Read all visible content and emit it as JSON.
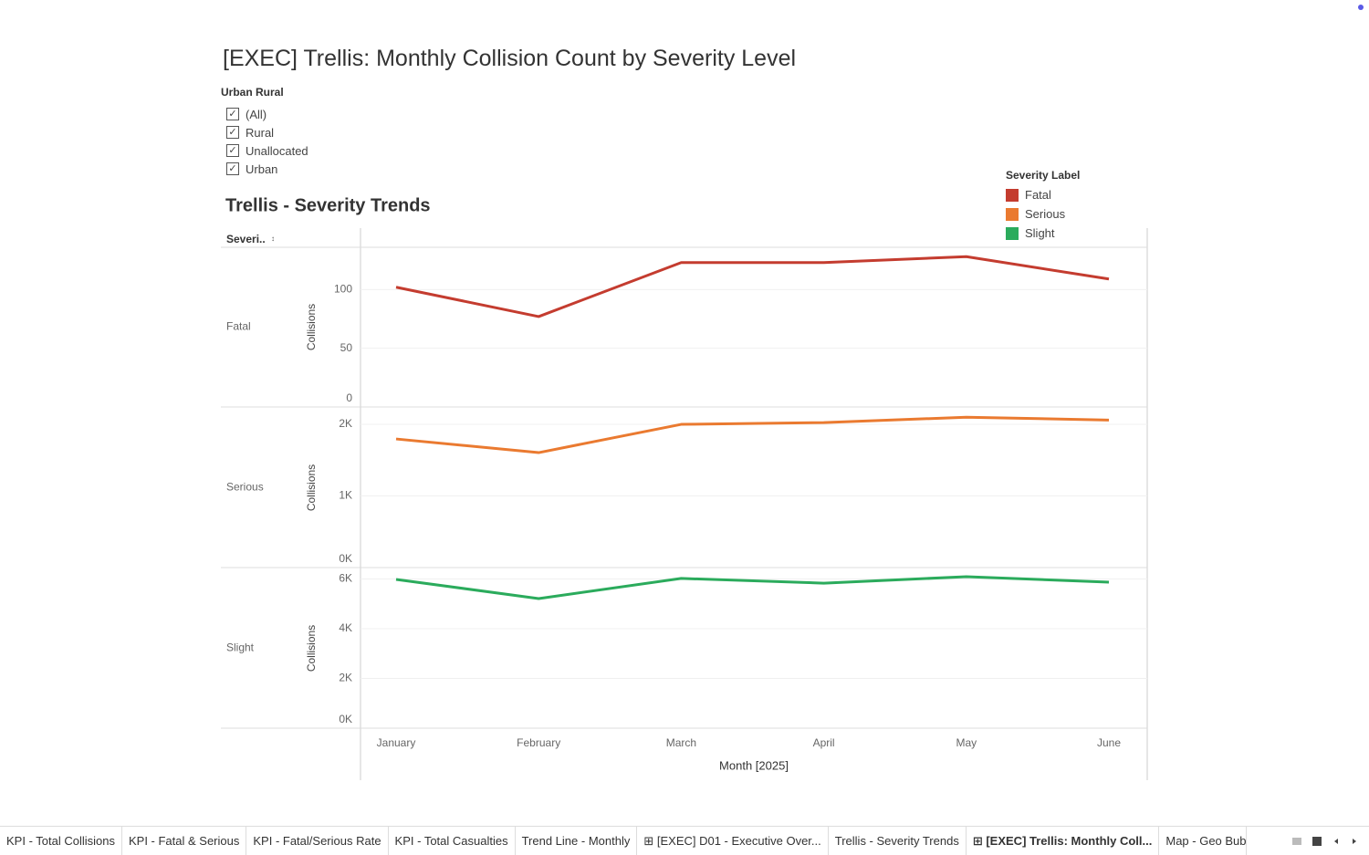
{
  "title": "[EXEC] Trellis: Monthly Collision Count by Severity Level",
  "filter": {
    "title": "Urban Rural",
    "options": [
      "(All)",
      "Rural",
      "Unallocated",
      "Urban"
    ]
  },
  "sheet_title": "Trellis - Severity Trends",
  "row_header": "Severi..",
  "legend_title": "Severity Label",
  "chart_data": [
    {
      "type": "line",
      "y_label": "Collisions",
      "series": [
        {
          "name": "Fatal",
          "color": "#c43c2f",
          "values": [
            102,
            77,
            123,
            123,
            128,
            109
          ]
        }
      ],
      "ylim": [
        0,
        136
      ],
      "yticks": [
        0,
        50,
        100
      ],
      "grid": true
    },
    {
      "type": "line",
      "y_label": "Collisions",
      "series": [
        {
          "name": "Serious",
          "color": "#ea7a30",
          "values": [
            1796,
            1605,
            2000,
            2025,
            2100,
            2060
          ]
        }
      ],
      "ylim": [
        0,
        2230
      ],
      "yticks": [
        {
          "value": 0,
          "label": "0K"
        },
        {
          "value": 1000,
          "label": "1K"
        },
        {
          "value": 2000,
          "label": "2K"
        }
      ],
      "grid": true
    },
    {
      "type": "line",
      "y_label": "Collisions",
      "series": [
        {
          "name": "Slight",
          "color": "#2bab5c",
          "values": [
            5980,
            5210,
            6020,
            5830,
            6090,
            5870
          ]
        }
      ],
      "ylim": [
        0,
        6420
      ],
      "yticks": [
        {
          "value": 0,
          "label": "0K"
        },
        {
          "value": 2000,
          "label": "2K"
        },
        {
          "value": 4000,
          "label": "4K"
        },
        {
          "value": 6000,
          "label": "6K"
        }
      ],
      "grid": true,
      "categories": [
        "January",
        "February",
        "March",
        "April",
        "May",
        "June"
      ],
      "x_label": "Month [2025]"
    }
  ],
  "tabs": [
    "KPI - Total Collisions",
    "KPI - Fatal & Serious",
    "KPI - Fatal/Serious Rate",
    "KPI - Total Casualties",
    "Trend Line - Monthly",
    "[EXEC] D01 - Executive Over...",
    "Trellis - Severity Trends",
    "[EXEC] Trellis: Monthly Coll...",
    "Map - Geo Bubl"
  ],
  "active_tab": 7,
  "dashboard_tabs": [
    5,
    7
  ]
}
